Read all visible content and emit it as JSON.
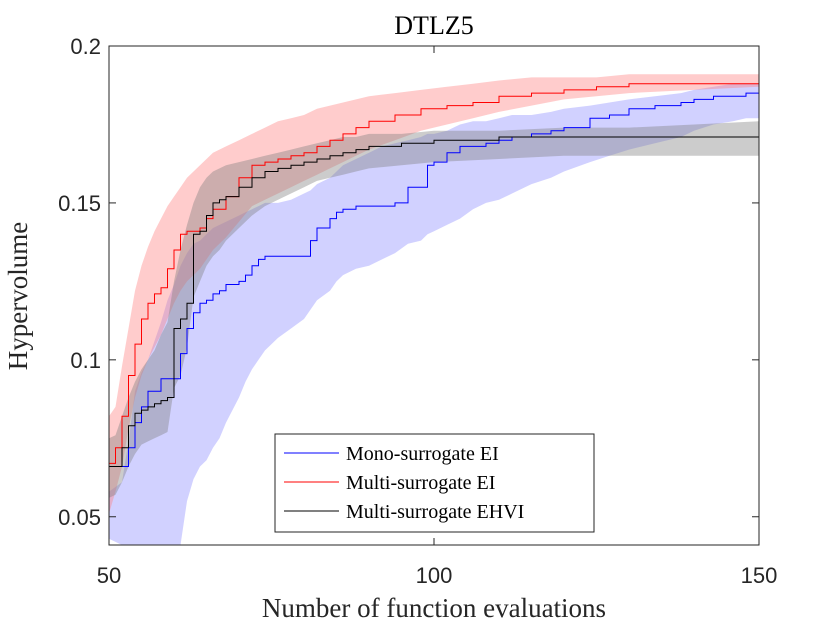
{
  "chart_data": {
    "type": "line",
    "title": "DTLZ5",
    "xlabel": "Number of function evaluations",
    "ylabel": "Hypervolume",
    "xlim": [
      50,
      150
    ],
    "ylim": [
      0.041,
      0.2
    ],
    "x_ticks": [
      50,
      100,
      150
    ],
    "x_tick_labels": [
      "50",
      "100",
      "150"
    ],
    "y_ticks": [
      0.05,
      0.1,
      0.15,
      0.2
    ],
    "y_tick_labels": [
      "0.05",
      "0.1",
      "0.15",
      "0.2"
    ],
    "grid": false,
    "legend_position": "lower-center",
    "series": [
      {
        "name": "Mono-surrogate EI",
        "color": "#0000ff",
        "band_color": "#9999ff",
        "band_opacity": 0.45,
        "x": [
          50,
          52,
          53,
          54,
          55,
          56,
          58,
          59,
          60,
          61,
          62,
          63,
          64,
          65,
          66,
          67,
          68,
          70,
          71,
          72,
          73,
          74,
          76,
          78,
          80,
          81,
          82,
          84,
          85,
          86,
          88,
          90,
          92,
          94,
          96,
          98,
          99,
          100,
          102,
          104,
          106,
          108,
          110,
          112,
          115,
          118,
          120,
          124,
          127,
          130,
          134,
          138,
          140,
          143,
          146,
          148,
          150
        ],
        "mean": [
          0.066,
          0.066,
          0.072,
          0.08,
          0.085,
          0.09,
          0.094,
          0.094,
          0.094,
          0.102,
          0.11,
          0.115,
          0.118,
          0.119,
          0.121,
          0.122,
          0.124,
          0.125,
          0.127,
          0.13,
          0.132,
          0.133,
          0.133,
          0.133,
          0.133,
          0.138,
          0.142,
          0.145,
          0.147,
          0.148,
          0.149,
          0.149,
          0.149,
          0.15,
          0.155,
          0.155,
          0.162,
          0.163,
          0.166,
          0.168,
          0.168,
          0.169,
          0.17,
          0.171,
          0.172,
          0.173,
          0.174,
          0.177,
          0.178,
          0.18,
          0.181,
          0.182,
          0.183,
          0.184,
          0.184,
          0.185,
          0.185
        ],
        "upper": [
          0.058,
          0.061,
          0.074,
          0.09,
          0.096,
          0.1,
          0.112,
          0.119,
          0.124,
          0.13,
          0.134,
          0.137,
          0.138,
          0.14,
          0.142,
          0.143,
          0.144,
          0.146,
          0.147,
          0.148,
          0.149,
          0.15,
          0.15,
          0.151,
          0.153,
          0.154,
          0.156,
          0.158,
          0.16,
          0.162,
          0.164,
          0.166,
          0.168,
          0.169,
          0.17,
          0.171,
          0.172,
          0.172,
          0.173,
          0.175,
          0.176,
          0.176,
          0.177,
          0.178,
          0.178,
          0.179,
          0.18,
          0.181,
          0.182,
          0.183,
          0.184,
          0.185,
          0.186,
          0.187,
          0.188,
          0.188,
          0.188
        ],
        "lower": [
          0.043,
          0.041,
          0.041,
          0.041,
          0.041,
          0.041,
          0.041,
          0.041,
          0.041,
          0.041,
          0.055,
          0.062,
          0.066,
          0.068,
          0.072,
          0.075,
          0.08,
          0.088,
          0.093,
          0.097,
          0.1,
          0.103,
          0.107,
          0.11,
          0.113,
          0.116,
          0.119,
          0.122,
          0.125,
          0.127,
          0.129,
          0.13,
          0.132,
          0.134,
          0.137,
          0.138,
          0.14,
          0.141,
          0.143,
          0.145,
          0.148,
          0.15,
          0.151,
          0.153,
          0.156,
          0.158,
          0.16,
          0.163,
          0.165,
          0.167,
          0.169,
          0.171,
          0.173,
          0.175,
          0.176,
          0.177,
          0.177
        ]
      },
      {
        "name": "Multi-surrogate EI",
        "color": "#ff0000",
        "band_color": "#ff8080",
        "band_opacity": 0.4,
        "x": [
          50,
          51,
          52,
          53,
          54,
          55,
          56,
          57,
          58,
          59,
          60,
          61,
          62,
          63,
          64,
          65,
          66,
          68,
          70,
          72,
          74,
          76,
          78,
          80,
          82,
          84,
          86,
          88,
          90,
          94,
          98,
          102,
          106,
          110,
          115,
          120,
          125,
          130,
          140,
          150
        ],
        "mean": [
          0.067,
          0.072,
          0.082,
          0.095,
          0.105,
          0.113,
          0.118,
          0.121,
          0.123,
          0.129,
          0.135,
          0.14,
          0.141,
          0.141,
          0.142,
          0.145,
          0.148,
          0.152,
          0.158,
          0.162,
          0.163,
          0.164,
          0.165,
          0.166,
          0.168,
          0.17,
          0.172,
          0.174,
          0.176,
          0.178,
          0.18,
          0.181,
          0.182,
          0.184,
          0.185,
          0.186,
          0.187,
          0.188,
          0.188,
          0.189
        ],
        "upper": [
          0.082,
          0.085,
          0.098,
          0.11,
          0.122,
          0.13,
          0.136,
          0.141,
          0.145,
          0.149,
          0.152,
          0.155,
          0.158,
          0.16,
          0.162,
          0.164,
          0.166,
          0.168,
          0.17,
          0.172,
          0.174,
          0.176,
          0.177,
          0.178,
          0.18,
          0.181,
          0.182,
          0.183,
          0.184,
          0.185,
          0.186,
          0.187,
          0.188,
          0.189,
          0.19,
          0.19,
          0.19,
          0.191,
          0.191,
          0.191
        ],
        "lower": [
          0.051,
          0.058,
          0.066,
          0.078,
          0.088,
          0.095,
          0.1,
          0.104,
          0.108,
          0.113,
          0.118,
          0.122,
          0.125,
          0.127,
          0.129,
          0.132,
          0.135,
          0.139,
          0.144,
          0.149,
          0.151,
          0.153,
          0.155,
          0.157,
          0.159,
          0.161,
          0.163,
          0.165,
          0.167,
          0.17,
          0.173,
          0.175,
          0.177,
          0.179,
          0.181,
          0.183,
          0.184,
          0.185,
          0.186,
          0.187
        ]
      },
      {
        "name": "Multi-surrogate EHVI",
        "color": "#000000",
        "band_color": "#808080",
        "band_opacity": 0.4,
        "x": [
          50,
          51,
          52,
          53,
          54,
          55,
          56,
          57,
          58,
          59,
          60,
          61,
          62,
          63,
          64,
          65,
          66,
          67,
          68,
          70,
          72,
          74,
          76,
          78,
          80,
          82,
          84,
          86,
          88,
          90,
          95,
          100,
          110,
          120,
          130,
          140,
          150
        ],
        "mean": [
          0.066,
          0.066,
          0.072,
          0.079,
          0.083,
          0.084,
          0.085,
          0.086,
          0.087,
          0.088,
          0.11,
          0.113,
          0.118,
          0.14,
          0.141,
          0.146,
          0.15,
          0.151,
          0.152,
          0.155,
          0.158,
          0.16,
          0.161,
          0.162,
          0.163,
          0.164,
          0.165,
          0.166,
          0.167,
          0.168,
          0.169,
          0.17,
          0.171,
          0.171,
          0.171,
          0.171,
          0.171
        ],
        "upper": [
          0.075,
          0.076,
          0.082,
          0.088,
          0.093,
          0.097,
          0.1,
          0.103,
          0.108,
          0.112,
          0.125,
          0.135,
          0.143,
          0.15,
          0.155,
          0.158,
          0.16,
          0.161,
          0.162,
          0.163,
          0.164,
          0.165,
          0.166,
          0.167,
          0.168,
          0.169,
          0.17,
          0.171,
          0.171,
          0.172,
          0.172,
          0.173,
          0.173,
          0.174,
          0.174,
          0.175,
          0.176
        ],
        "lower": [
          0.056,
          0.057,
          0.061,
          0.066,
          0.07,
          0.073,
          0.074,
          0.075,
          0.076,
          0.077,
          0.091,
          0.095,
          0.104,
          0.12,
          0.125,
          0.13,
          0.133,
          0.135,
          0.138,
          0.142,
          0.146,
          0.149,
          0.151,
          0.153,
          0.155,
          0.157,
          0.158,
          0.159,
          0.16,
          0.161,
          0.162,
          0.163,
          0.164,
          0.165,
          0.165,
          0.165,
          0.165
        ]
      }
    ]
  }
}
